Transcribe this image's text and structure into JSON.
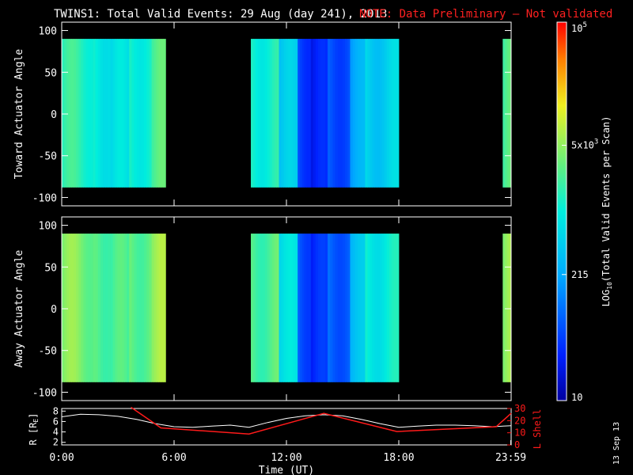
{
  "header": {
    "title": "TWINS1: Total Valid Events: 29 Aug (day 241), 2013",
    "note": "NOTE: Data Preliminary — Not validated"
  },
  "colors": {
    "background": "#000000",
    "note": "#ff2020",
    "foreground": "#ffffff",
    "lshell": "#ff1a1a",
    "radius": "#ffffff"
  },
  "footer": {
    "date_stamp": "13 Sep 13"
  },
  "chart_data": [
    {
      "type": "heatmap",
      "ylabel": "Toward Actuator Angle",
      "ylim": [
        -110,
        110
      ],
      "yticks": [
        100,
        50,
        0,
        -50,
        -100
      ],
      "xlim_hours": [
        0,
        24
      ],
      "data_extent_angle": [
        -88,
        90
      ],
      "data_intervals_hours": [
        [
          0,
          5.55
        ],
        [
          10.1,
          18
        ],
        [
          23.55,
          24
        ]
      ],
      "levels": [
        {
          "h0": 0,
          "h1": 1.8,
          "log10_counts": 3.2
        },
        {
          "h0": 1.8,
          "h1": 2.6,
          "log10_counts": 3.0
        },
        {
          "h0": 2.6,
          "h1": 3.6,
          "log10_counts": 2.8
        },
        {
          "h0": 3.6,
          "h1": 4.8,
          "log10_counts": 3.1
        },
        {
          "h0": 4.8,
          "h1": 5.55,
          "log10_counts": 3.35
        },
        {
          "h0": 10.1,
          "h1": 11.6,
          "log10_counts": 3.1
        },
        {
          "h0": 11.6,
          "h1": 12.6,
          "log10_counts": 2.6
        },
        {
          "h0": 12.6,
          "h1": 13.3,
          "log10_counts": 1.7
        },
        {
          "h0": 13.3,
          "h1": 14.2,
          "log10_counts": 1.4
        },
        {
          "h0": 14.2,
          "h1": 15.4,
          "log10_counts": 1.8
        },
        {
          "h0": 15.4,
          "h1": 16.2,
          "log10_counts": 2.3
        },
        {
          "h0": 16.2,
          "h1": 18,
          "log10_counts": 2.7
        },
        {
          "h0": 23.55,
          "h1": 24,
          "log10_counts": 3.4
        }
      ]
    },
    {
      "type": "heatmap",
      "ylabel": "Away Actuator Angle",
      "ylim": [
        -110,
        110
      ],
      "yticks": [
        100,
        50,
        0,
        -50,
        -100
      ],
      "xlim_hours": [
        0,
        24
      ],
      "data_extent_angle": [
        -88,
        90
      ],
      "data_intervals_hours": [
        [
          0,
          5.55
        ],
        [
          10.1,
          18
        ],
        [
          23.55,
          24
        ]
      ],
      "levels": [
        {
          "h0": 0,
          "h1": 1.8,
          "log10_counts": 3.6
        },
        {
          "h0": 1.8,
          "h1": 2.6,
          "log10_counts": 3.45
        },
        {
          "h0": 2.6,
          "h1": 3.6,
          "log10_counts": 3.3
        },
        {
          "h0": 3.6,
          "h1": 4.8,
          "log10_counts": 3.5
        },
        {
          "h0": 4.8,
          "h1": 5.55,
          "log10_counts": 3.7
        },
        {
          "h0": 10.1,
          "h1": 11.6,
          "log10_counts": 3.4
        },
        {
          "h0": 11.6,
          "h1": 12.6,
          "log10_counts": 2.8
        },
        {
          "h0": 12.6,
          "h1": 13.3,
          "log10_counts": 1.8
        },
        {
          "h0": 13.3,
          "h1": 14.2,
          "log10_counts": 1.5
        },
        {
          "h0": 14.2,
          "h1": 15.4,
          "log10_counts": 1.9
        },
        {
          "h0": 15.4,
          "h1": 16.2,
          "log10_counts": 2.5
        },
        {
          "h0": 16.2,
          "h1": 18,
          "log10_counts": 3.0
        },
        {
          "h0": 23.55,
          "h1": 24,
          "log10_counts": 3.7
        }
      ]
    },
    {
      "type": "line",
      "ylabel": "R [R",
      "ylabel_sub": "E",
      "ylabel_close": "]",
      "y2label": "L Shell",
      "xlabel": "Time (UT)",
      "xticks": [
        "0:00",
        "6:00",
        "12:00",
        "18:00",
        "23:59"
      ],
      "xtick_hours": [
        0,
        6,
        12,
        18,
        23.98
      ],
      "ylim": [
        1.5,
        8.5
      ],
      "yticks": [
        8,
        6,
        4,
        2
      ],
      "y2lim": [
        0,
        30
      ],
      "y2ticks": [
        30,
        20,
        10,
        0
      ],
      "series": [
        {
          "axis": "left",
          "x": [
            0,
            1,
            2,
            3,
            4,
            5,
            6,
            7,
            8,
            9,
            10,
            11,
            12,
            13,
            14,
            15,
            16,
            17,
            18,
            19,
            20,
            21,
            22,
            23,
            24
          ],
          "y": [
            6.9,
            7.4,
            7.3,
            7.0,
            6.4,
            5.6,
            5.0,
            4.9,
            5.1,
            5.3,
            4.9,
            5.8,
            6.6,
            7.1,
            7.3,
            7.1,
            6.4,
            5.6,
            4.9,
            5.1,
            5.3,
            5.3,
            5.2,
            5.0,
            5.2
          ]
        },
        {
          "axis": "right",
          "x": [
            3.7,
            5.3,
            10,
            14,
            17.9,
            23.2,
            24
          ],
          "y": [
            31,
            14,
            9,
            26,
            11,
            15,
            26
          ]
        }
      ]
    },
    {
      "type": "colorbar",
      "label": "LOG",
      "label_sub": "10",
      "label_rest": "(Total Valid Events per Scan)",
      "range_log10": [
        1,
        5
      ],
      "tick_values": [
        10,
        215,
        5000,
        100000
      ],
      "tick_labels": [
        {
          "main": "10",
          "sup": ""
        },
        {
          "main": "215",
          "sup": ""
        },
        {
          "main": "5x10",
          "sup": "3"
        },
        {
          "main": "10",
          "sup": "5"
        }
      ]
    }
  ]
}
